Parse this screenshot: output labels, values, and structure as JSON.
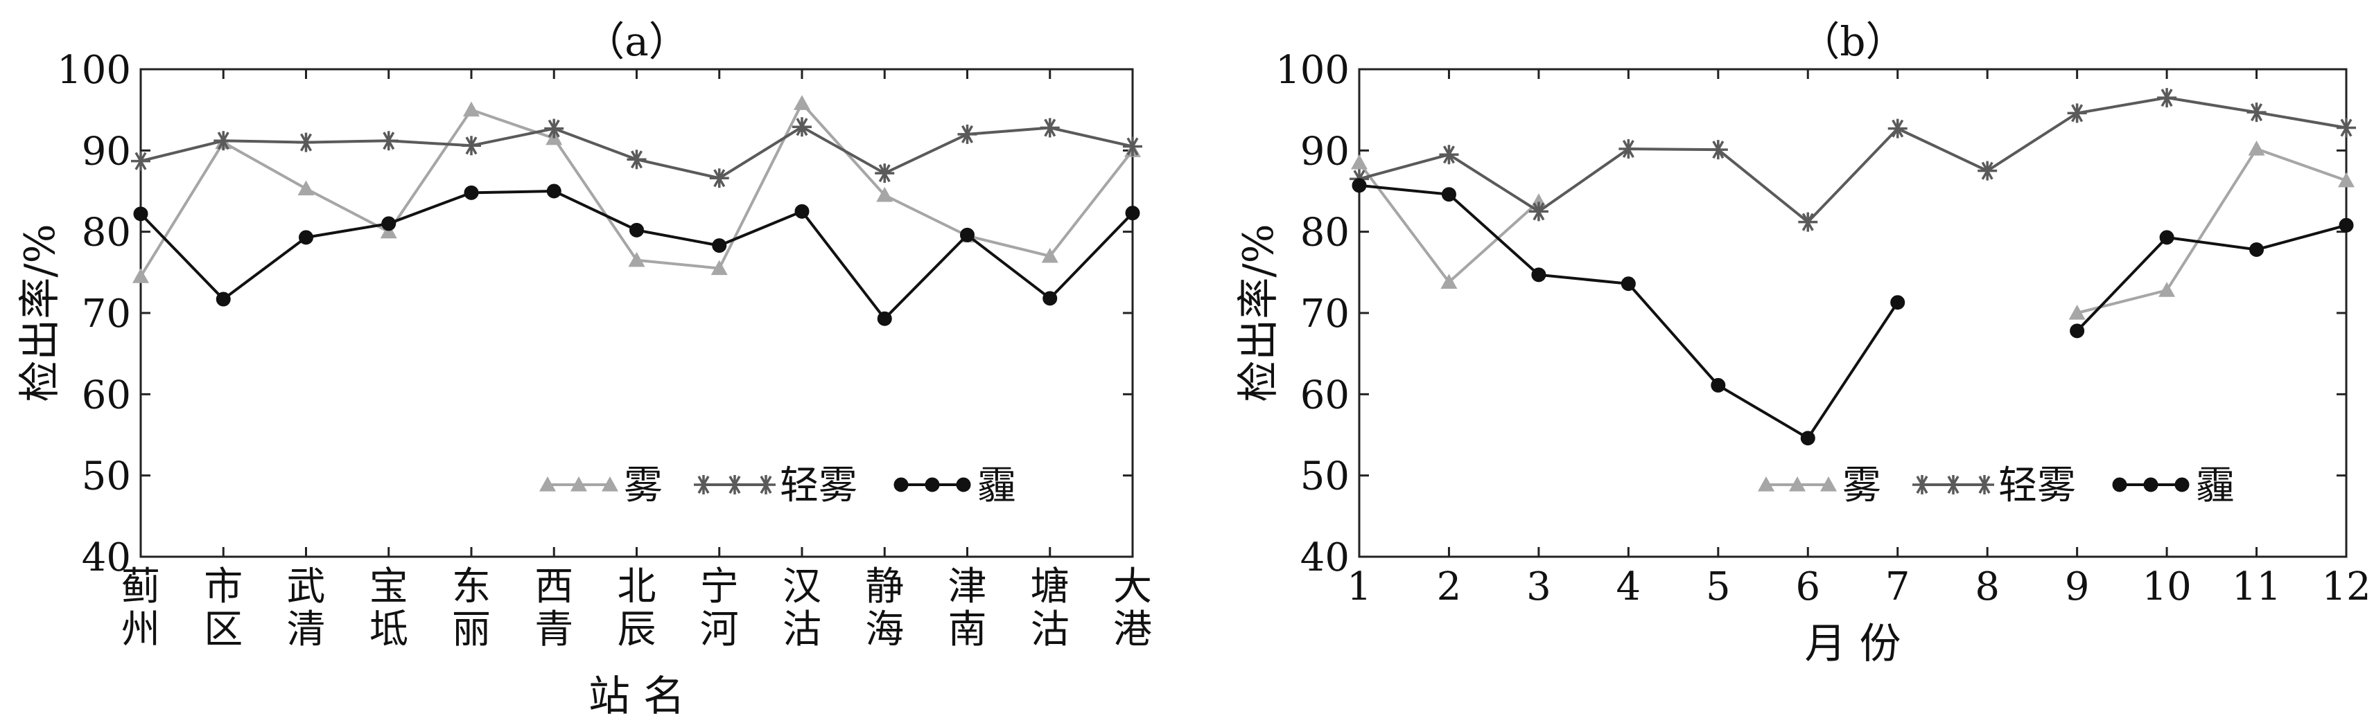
{
  "chart_data": [
    {
      "type": "line",
      "title": "（a）",
      "xlabel": "站 名",
      "ylabel": "检出率/%",
      "ylim": [
        40,
        100
      ],
      "yticks": [
        40,
        50,
        60,
        70,
        80,
        90,
        100
      ],
      "categories": [
        [
          "蓟",
          "州"
        ],
        [
          "市",
          "区"
        ],
        [
          "武",
          "清"
        ],
        [
          "宝",
          "坻"
        ],
        [
          "东",
          "丽"
        ],
        [
          "西",
          "青"
        ],
        [
          "北",
          "辰"
        ],
        [
          "宁",
          "河"
        ],
        [
          "汉",
          "沽"
        ],
        [
          "静",
          "海"
        ],
        [
          "津",
          "南"
        ],
        [
          "塘",
          "沽"
        ],
        [
          "大",
          "港"
        ]
      ],
      "legend_position": "bottom-right",
      "series": [
        {
          "name": "雾",
          "color": "#a6a6a6",
          "marker": "triangle",
          "values": [
            74.5,
            91,
            85.3,
            80,
            95,
            91.5,
            76.5,
            75.5,
            95.8,
            84.5,
            79.5,
            77,
            90
          ]
        },
        {
          "name": "轻雾",
          "color": "#5a5a5a",
          "marker": "star",
          "values": [
            88.7,
            91.2,
            91,
            91.2,
            90.6,
            92.7,
            88.9,
            86.6,
            92.9,
            87.2,
            92,
            92.8,
            90.5
          ]
        },
        {
          "name": "霾",
          "color": "#111111",
          "marker": "circle",
          "values": [
            82.2,
            71.7,
            79.3,
            81,
            84.8,
            85,
            80.2,
            78.3,
            82.5,
            69.3,
            79.6,
            71.8,
            82.3
          ]
        }
      ]
    },
    {
      "type": "line",
      "title": "（b）",
      "xlabel": "月 份",
      "ylabel": "检出率/%",
      "ylim": [
        40,
        100
      ],
      "yticks": [
        40,
        50,
        60,
        70,
        80,
        90,
        100
      ],
      "x": [
        1,
        2,
        3,
        4,
        5,
        6,
        7,
        8,
        9,
        10,
        11,
        12
      ],
      "legend_position": "bottom-right",
      "series": [
        {
          "name": "雾",
          "color": "#a6a6a6",
          "marker": "triangle",
          "values": [
            88.5,
            73.8,
            83.7,
            null,
            null,
            null,
            null,
            null,
            70,
            72.8,
            90.2,
            86.3
          ]
        },
        {
          "name": "轻雾",
          "color": "#5a5a5a",
          "marker": "star",
          "values": [
            86.5,
            89.5,
            82.5,
            90.2,
            90.1,
            81.2,
            92.7,
            87.5,
            94.6,
            96.5,
            94.7,
            92.8
          ]
        },
        {
          "name": "霾",
          "color": "#111111",
          "marker": "circle",
          "values": [
            85.7,
            84.6,
            74.7,
            73.6,
            61.1,
            54.6,
            71.3,
            null,
            67.8,
            79.3,
            77.8,
            80.8
          ]
        }
      ]
    }
  ]
}
